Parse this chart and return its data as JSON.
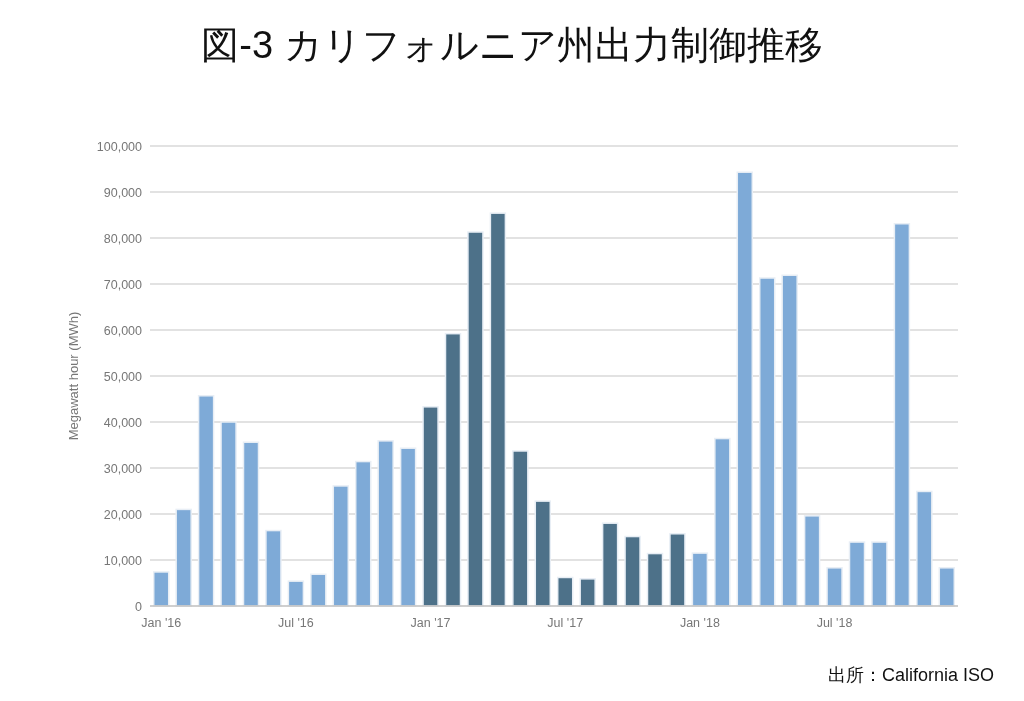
{
  "chart_data": {
    "type": "bar",
    "title": "図-3 カリフォルニア州出力制御推移",
    "ylabel": "Megawatt hour (MWh)",
    "categories": [
      "Jan '16",
      null,
      null,
      null,
      null,
      null,
      "Jul '16",
      null,
      null,
      null,
      null,
      null,
      "Jan '17",
      null,
      null,
      null,
      null,
      null,
      "Jul '17",
      null,
      null,
      null,
      null,
      null,
      "Jan '18",
      null,
      null,
      null,
      null,
      null,
      "Jul '18",
      null,
      null,
      null,
      null,
      null
    ],
    "values": [
      7400,
      21000,
      45700,
      40000,
      35600,
      16400,
      5400,
      6900,
      26100,
      31400,
      35900,
      34300,
      43300,
      59200,
      81300,
      85400,
      33700,
      22800,
      6200,
      5900,
      18000,
      15100,
      11400,
      15700,
      11500,
      36400,
      94300,
      71300,
      71900,
      19600,
      8300,
      13900,
      13900,
      83100,
      24900,
      8300
    ],
    "colors": [
      "#7eaad7",
      "#7eaad7",
      "#7eaad7",
      "#7eaad7",
      "#7eaad7",
      "#7eaad7",
      "#7eaad7",
      "#7eaad7",
      "#7eaad7",
      "#7eaad7",
      "#7eaad7",
      "#7eaad7",
      "#4d7189",
      "#4d7189",
      "#4d7189",
      "#4d7189",
      "#4d7189",
      "#4d7189",
      "#4d7189",
      "#4d7189",
      "#4d7189",
      "#4d7189",
      "#4d7189",
      "#4d7189",
      "#7eaad7",
      "#7eaad7",
      "#7eaad7",
      "#7eaad7",
      "#7eaad7",
      "#7eaad7",
      "#7eaad7",
      "#7eaad7",
      "#7eaad7",
      "#7eaad7",
      "#7eaad7",
      "#7eaad7"
    ],
    "ylim": [
      0,
      100000
    ],
    "yticks": [
      0,
      {
        "value": 10000,
        "label": "10,000"
      },
      {
        "value": 20000,
        "label": "20,000"
      },
      {
        "value": 30000,
        "label": "30,000"
      },
      {
        "value": 40000,
        "label": "40,000"
      },
      {
        "value": 50000,
        "label": "50,000"
      },
      {
        "value": 60000,
        "label": "60,000"
      },
      {
        "value": 70000,
        "label": "70,000"
      },
      {
        "value": 80000,
        "label": "80,000"
      },
      {
        "value": 90000,
        "label": "90,000"
      },
      {
        "value": 100000,
        "label": "100,000"
      }
    ],
    "grid": "y",
    "annotations": [
      "出所：California ISO"
    ]
  }
}
